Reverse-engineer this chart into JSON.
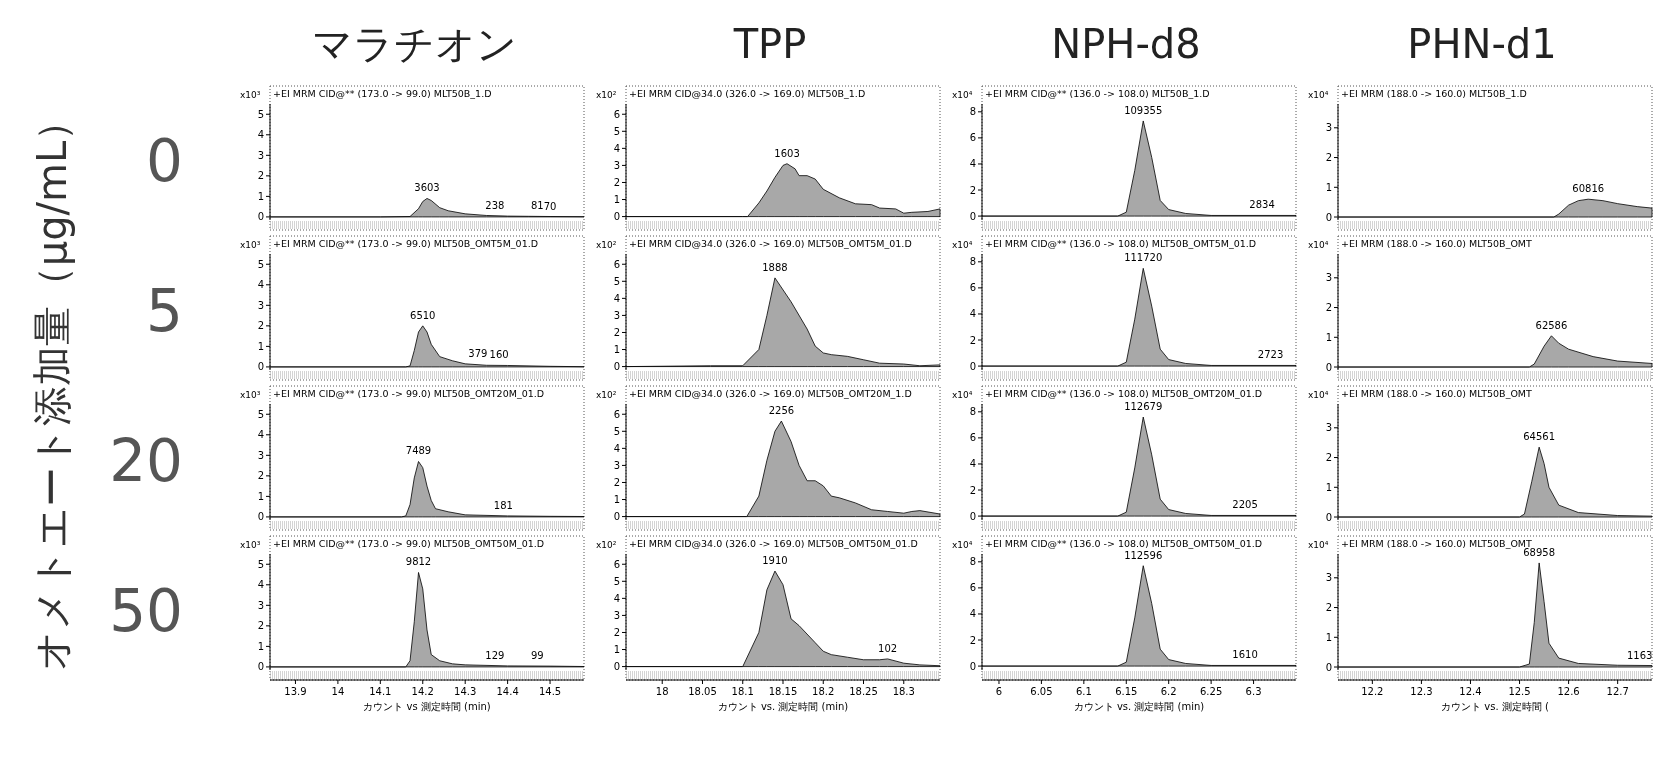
{
  "chart_data": [
    {
      "type": "area",
      "title": "マラチオン",
      "subtitle": "+EI MRM CID@** (173.0 -> 99.0) MLT50B_1.D",
      "ylabel": "x10³",
      "tick_labels": "y",
      "color": "#a8a8a8",
      "xlim": [
        13.84,
        14.58
      ],
      "ylim": [
        -0.15,
        5.5
      ],
      "yticks": [
        0,
        1,
        2,
        3,
        4,
        5
      ],
      "x": [
        13.84,
        14.1,
        14.17,
        14.19,
        14.2,
        14.21,
        14.22,
        14.24,
        14.26,
        14.3,
        14.35,
        14.4,
        14.45,
        14.5,
        14.58
      ],
      "values": [
        0,
        0,
        0.02,
        0.4,
        0.75,
        0.9,
        0.8,
        0.45,
        0.3,
        0.15,
        0.07,
        0.04,
        0.03,
        0.02,
        0.01
      ],
      "annotations": [
        "オメトエート添加量（μg/mL）",
        "0",
        {
          "text": "3603",
          "x": 14.21,
          "y": 0.9
        },
        {
          "text": "238",
          "x": 14.37,
          "y": 0.05
        },
        {
          "text": "81",
          "x": 14.47,
          "y": 0.03
        },
        {
          "text": "70",
          "x": 14.5,
          "y": 0.02
        }
      ]
    },
    {
      "type": "area",
      "title": "TPP",
      "subtitle": "+EI MRM CID@34.0 (326.0 -> 169.0) MLT50B_1.D",
      "ylabel": "x10²",
      "tick_labels": "y",
      "color": "#a8a8a8",
      "xlim": [
        17.955,
        18.345
      ],
      "ylim": [
        -0.2,
        6.6
      ],
      "yticks": [
        0,
        1,
        2,
        3,
        4,
        5,
        6
      ],
      "x": [
        17.955,
        18.1,
        18.106,
        18.12,
        18.13,
        18.14,
        18.15,
        18.155,
        18.165,
        18.17,
        18.18,
        18.19,
        18.2,
        18.22,
        18.24,
        18.26,
        18.27,
        18.29,
        18.3,
        18.31,
        18.33,
        18.345
      ],
      "values": [
        0,
        0,
        0,
        0.8,
        1.5,
        2.3,
        3.0,
        3.1,
        2.8,
        2.4,
        2.4,
        2.2,
        1.6,
        1.1,
        0.75,
        0.7,
        0.5,
        0.45,
        0.2,
        0.25,
        0.3,
        0.45
      ],
      "annotations": [
        {
          "text": "1603",
          "x": 18.155,
          "y": 3.1
        }
      ]
    },
    {
      "type": "area",
      "title": "NPH-d8",
      "subtitle": "+EI MRM CID@** (136.0 -> 108.0) MLT50B_1.D",
      "ylabel": "x10⁴",
      "tick_labels": "y",
      "color": "#a8a8a8",
      "xlim": [
        5.98,
        6.35
      ],
      "ylim": [
        -0.3,
        8.6
      ],
      "yticks": [
        0,
        2,
        4,
        6,
        8
      ],
      "x": [
        5.98,
        6.14,
        6.15,
        6.16,
        6.17,
        6.18,
        6.19,
        6.2,
        6.22,
        6.25,
        6.35
      ],
      "values": [
        0,
        0,
        0.3,
        3.5,
        7.3,
        4.5,
        1.2,
        0.5,
        0.2,
        0.05,
        0.05
      ],
      "annotations": [
        {
          "text": "109355",
          "x": 6.17,
          "y": 7.3
        },
        {
          "text": "2834",
          "x": 6.31,
          "y": 0.05
        }
      ]
    },
    {
      "type": "area",
      "title": "PHN-d1",
      "subtitle": "+EI MRM (188.0 -> 160.0) MLT50B_1.D",
      "ylabel": "x10⁴",
      "tick_labels": "y",
      "color": "#a8a8a8",
      "xlim": [
        12.13,
        12.77
      ],
      "ylim": [
        -0.1,
        3.8
      ],
      "yticks": [
        0,
        1,
        2,
        3
      ],
      "x": [
        12.13,
        12.57,
        12.58,
        12.6,
        12.62,
        12.64,
        12.67,
        12.7,
        12.74,
        12.77
      ],
      "values": [
        0,
        0,
        0.1,
        0.4,
        0.55,
        0.6,
        0.55,
        0.45,
        0.35,
        0.3
      ],
      "annotations": [
        {
          "text": "60816",
          "x": 12.64,
          "y": 0.6
        }
      ]
    },
    {
      "type": "area",
      "subtitle": "+EI MRM CID@** (173.0 -> 99.0) MLT50B_OMT5M_01.D",
      "ylabel": "x10³",
      "tick_labels": "y",
      "color": "#a8a8a8",
      "xlim": [
        13.84,
        14.58
      ],
      "ylim": [
        -0.15,
        5.5
      ],
      "yticks": [
        0,
        1,
        2,
        3,
        4,
        5
      ],
      "x": [
        13.84,
        14.16,
        14.17,
        14.18,
        14.19,
        14.2,
        14.21,
        14.22,
        14.24,
        14.27,
        14.3,
        14.35,
        14.4,
        14.5,
        14.58
      ],
      "values": [
        0,
        0,
        0.05,
        0.8,
        1.7,
        2.0,
        1.7,
        1.1,
        0.5,
        0.3,
        0.15,
        0.08,
        0.07,
        0.03,
        0.01
      ],
      "annotations": [
        "5",
        {
          "text": "6510",
          "x": 14.2,
          "y": 2.0
        },
        {
          "text": "379",
          "x": 14.33,
          "y": 0.12
        },
        {
          "text": "160",
          "x": 14.38,
          "y": 0.07
        }
      ]
    },
    {
      "type": "area",
      "subtitle": "+EI MRM CID@34.0 (326.0 -> 169.0) MLT50B_OMT5M_01.D",
      "ylabel": "x10²",
      "tick_labels": "y",
      "color": "#a8a8a8",
      "xlim": [
        17.955,
        18.345
      ],
      "ylim": [
        -0.2,
        6.6
      ],
      "yticks": [
        0,
        1,
        2,
        3,
        4,
        5,
        6
      ],
      "x": [
        17.955,
        18.06,
        18.1,
        18.12,
        18.13,
        18.14,
        18.16,
        18.18,
        18.19,
        18.2,
        18.21,
        18.23,
        18.25,
        18.27,
        18.3,
        18.32,
        18.345
      ],
      "values": [
        0,
        0.05,
        0.05,
        1.0,
        3.0,
        5.2,
        3.8,
        2.2,
        1.2,
        0.8,
        0.7,
        0.6,
        0.4,
        0.2,
        0.15,
        0.05,
        0.1
      ],
      "annotations": [
        {
          "text": "1888",
          "x": 18.14,
          "y": 5.2
        }
      ]
    },
    {
      "type": "area",
      "subtitle": "+EI MRM CID@** (136.0 -> 108.0) MLT50B_OMT5M_01.D",
      "ylabel": "x10⁴",
      "tick_labels": "y",
      "color": "#a8a8a8",
      "xlim": [
        5.98,
        6.35
      ],
      "ylim": [
        -0.3,
        8.6
      ],
      "yticks": [
        0,
        2,
        4,
        6,
        8
      ],
      "x": [
        5.98,
        6.14,
        6.15,
        6.16,
        6.17,
        6.18,
        6.19,
        6.2,
        6.22,
        6.25,
        6.35
      ],
      "values": [
        0,
        0,
        0.3,
        3.6,
        7.5,
        4.6,
        1.3,
        0.5,
        0.2,
        0.05,
        0.05
      ],
      "annotations": [
        {
          "text": "111720",
          "x": 6.17,
          "y": 7.5
        },
        {
          "text": "2723",
          "x": 6.32,
          "y": 0.05
        }
      ]
    },
    {
      "type": "area",
      "subtitle": "+EI MRM (188.0 -> 160.0) MLT50B_OMT",
      "ylabel": "x10⁴",
      "color": "#a8a8a8",
      "xlim": [
        12.13,
        12.77
      ],
      "ylim": [
        -0.1,
        3.8
      ],
      "yticks": [
        0,
        1,
        2,
        3
      ],
      "tick_labels": "y",
      "x": [
        12.13,
        12.52,
        12.53,
        12.55,
        12.565,
        12.58,
        12.6,
        12.65,
        12.7,
        12.77
      ],
      "values": [
        0,
        0,
        0.1,
        0.7,
        1.05,
        0.8,
        0.6,
        0.35,
        0.2,
        0.12
      ],
      "annotations": [
        {
          "text": "62586",
          "x": 12.565,
          "y": 1.05
        }
      ]
    },
    {
      "type": "area",
      "subtitle": "+EI MRM CID@** (173.0 -> 99.0) MLT50B_OMT20M_01.D",
      "ylabel": "x10³",
      "tick_labels": "y",
      "color": "#a8a8a8",
      "xlim": [
        13.84,
        14.58
      ],
      "ylim": [
        -0.15,
        5.5
      ],
      "yticks": [
        0,
        1,
        2,
        3,
        4,
        5
      ],
      "x": [
        13.84,
        14.15,
        14.16,
        14.17,
        14.18,
        14.19,
        14.2,
        14.21,
        14.22,
        14.23,
        14.26,
        14.3,
        14.4,
        14.5,
        14.58
      ],
      "values": [
        0,
        0,
        0.05,
        0.6,
        1.9,
        2.7,
        2.4,
        1.5,
        0.8,
        0.4,
        0.25,
        0.1,
        0.05,
        0.03,
        0.02
      ],
      "annotations": [
        "20",
        {
          "text": "7489",
          "x": 14.19,
          "y": 2.7
        },
        {
          "text": "181",
          "x": 14.39,
          "y": 0.05
        }
      ]
    },
    {
      "type": "area",
      "subtitle": "+EI MRM CID@34.0 (326.0 -> 169.0) MLT50B_OMT20M_1.D",
      "ylabel": "x10²",
      "tick_labels": "y",
      "color": "#a8a8a8",
      "xlim": [
        17.955,
        18.345
      ],
      "ylim": [
        -0.2,
        6.6
      ],
      "yticks": [
        0,
        1,
        2,
        3,
        4,
        5,
        6
      ],
      "x": [
        17.955,
        18.105,
        18.12,
        18.13,
        18.14,
        18.148,
        18.16,
        18.17,
        18.18,
        18.19,
        18.2,
        18.21,
        18.22,
        18.24,
        18.26,
        18.28,
        18.3,
        18.31,
        18.32,
        18.345
      ],
      "values": [
        0,
        0,
        1.2,
        3.3,
        5.0,
        5.6,
        4.4,
        3.0,
        2.1,
        2.1,
        1.8,
        1.2,
        1.1,
        0.8,
        0.4,
        0.3,
        0.2,
        0.3,
        0.35,
        0.15
      ],
      "annotations": [
        {
          "text": "2256",
          "x": 18.148,
          "y": 5.6
        }
      ]
    },
    {
      "type": "area",
      "subtitle": "+EI MRM CID@** (136.0 -> 108.0) MLT50B_OMT20M_01.D",
      "ylabel": "x10⁴",
      "tick_labels": "y",
      "color": "#a8a8a8",
      "xlim": [
        5.98,
        6.35
      ],
      "ylim": [
        -0.3,
        8.6
      ],
      "yticks": [
        0,
        2,
        4,
        6,
        8
      ],
      "x": [
        5.98,
        6.14,
        6.15,
        6.16,
        6.17,
        6.18,
        6.19,
        6.2,
        6.22,
        6.25,
        6.35
      ],
      "values": [
        0,
        0,
        0.3,
        3.7,
        7.6,
        4.7,
        1.3,
        0.5,
        0.2,
        0.05,
        0.05
      ],
      "annotations": [
        {
          "text": "112679",
          "x": 6.17,
          "y": 7.6
        },
        {
          "text": "2205",
          "x": 6.29,
          "y": 0.05
        }
      ]
    },
    {
      "type": "area",
      "subtitle": "+EI MRM (188.0 -> 160.0) MLT50B_OMT",
      "ylabel": "x10⁴",
      "color": "#a8a8a8",
      "xlim": [
        12.13,
        12.77
      ],
      "ylim": [
        -0.1,
        3.8
      ],
      "yticks": [
        0,
        1,
        2,
        3
      ],
      "tick_labels": "y",
      "x": [
        12.13,
        12.5,
        12.51,
        12.525,
        12.54,
        12.55,
        12.56,
        12.58,
        12.62,
        12.7,
        12.77
      ],
      "values": [
        0,
        0,
        0.1,
        1.2,
        2.35,
        1.8,
        1.0,
        0.4,
        0.15,
        0.05,
        0.03
      ],
      "annotations": [
        {
          "text": "64561",
          "x": 12.54,
          "y": 2.35
        }
      ]
    },
    {
      "type": "area",
      "subtitle": "+EI MRM CID@** (173.0 -> 99.0) MLT50B_OMT50M_01.D",
      "xlabel": "カウント vs 測定時間 (min)",
      "ylabel": "x10³",
      "color": "#a8a8a8",
      "xlim": [
        13.84,
        14.58
      ],
      "xticks": [
        13.9,
        14,
        14.1,
        14.2,
        14.3,
        14.4,
        14.5
      ],
      "ylim": [
        -0.15,
        5.5
      ],
      "yticks": [
        0,
        1,
        2,
        3,
        4,
        5
      ],
      "x": [
        13.84,
        14.16,
        14.17,
        14.18,
        14.19,
        14.2,
        14.21,
        14.22,
        14.24,
        14.27,
        14.3,
        14.4,
        14.5,
        14.58
      ],
      "values": [
        0,
        0,
        0.3,
        2.2,
        4.6,
        3.8,
        1.8,
        0.6,
        0.3,
        0.15,
        0.1,
        0.05,
        0.04,
        0.02
      ],
      "annotations": [
        "50",
        {
          "text": "9812",
          "x": 14.19,
          "y": 4.6
        },
        {
          "text": "129",
          "x": 14.37,
          "y": 0.05
        },
        {
          "text": "99",
          "x": 14.47,
          "y": 0.04
        }
      ]
    },
    {
      "type": "area",
      "subtitle": "+EI MRM CID@34.0 (326.0 -> 169.0) MLT50B_OMT50M_01.D",
      "xlabel": "カウント vs. 測定時間 (min)",
      "ylabel": "x10²",
      "color": "#a8a8a8",
      "xlim": [
        17.955,
        18.345
      ],
      "xticks": [
        18,
        18.05,
        18.1,
        18.15,
        18.2,
        18.25,
        18.3
      ],
      "ylim": [
        -0.2,
        6.6
      ],
      "yticks": [
        0,
        1,
        2,
        3,
        4,
        5,
        6
      ],
      "x": [
        17.955,
        18.1,
        18.12,
        18.13,
        18.14,
        18.15,
        18.16,
        18.17,
        18.19,
        18.2,
        18.21,
        18.23,
        18.25,
        18.27,
        18.28,
        18.3,
        18.32,
        18.345
      ],
      "values": [
        0,
        0,
        2.0,
        4.5,
        5.6,
        4.8,
        2.8,
        2.4,
        1.4,
        0.9,
        0.7,
        0.55,
        0.4,
        0.4,
        0.45,
        0.2,
        0.1,
        0.05
      ],
      "annotations": [
        {
          "text": "1910",
          "x": 18.14,
          "y": 5.6
        },
        {
          "text": "102",
          "x": 18.28,
          "y": 0.45
        }
      ]
    },
    {
      "type": "area",
      "subtitle": "+EI MRM CID@** (136.0 -> 108.0) MLT50B_OMT50M_01.D",
      "xlabel": "カウント vs. 測定時間 (min)",
      "ylabel": "x10⁴",
      "color": "#a8a8a8",
      "xlim": [
        5.98,
        6.35
      ],
      "xticks": [
        6,
        6.05,
        6.1,
        6.15,
        6.2,
        6.25,
        6.3
      ],
      "ylim": [
        -0.3,
        8.6
      ],
      "yticks": [
        0,
        2,
        4,
        6,
        8
      ],
      "x": [
        5.98,
        6.14,
        6.15,
        6.16,
        6.17,
        6.18,
        6.19,
        6.2,
        6.22,
        6.25,
        6.35
      ],
      "values": [
        0,
        0,
        0.3,
        3.7,
        7.7,
        4.8,
        1.3,
        0.5,
        0.2,
        0.05,
        0.05
      ],
      "annotations": [
        {
          "text": "112596",
          "x": 6.17,
          "y": 7.7
        },
        {
          "text": "1610",
          "x": 6.29,
          "y": 0.05
        }
      ]
    },
    {
      "type": "area",
      "subtitle": "+EI MRM (188.0 -> 160.0) MLT50B_OMT",
      "xlabel": "カウント vs. 測定時間 (",
      "ylabel": "x10⁴",
      "color": "#a8a8a8",
      "xlim": [
        12.13,
        12.77
      ],
      "xticks": [
        12.2,
        12.3,
        12.4,
        12.5,
        12.6,
        12.7
      ],
      "ylim": [
        -0.1,
        3.8
      ],
      "yticks": [
        0,
        1,
        2,
        3
      ],
      "x": [
        12.13,
        12.5,
        12.52,
        12.53,
        12.54,
        12.55,
        12.56,
        12.58,
        12.62,
        12.7,
        12.77
      ],
      "values": [
        0,
        0,
        0.1,
        1.5,
        3.5,
        2.2,
        0.8,
        0.3,
        0.12,
        0.06,
        0.05
      ],
      "annotations": [
        {
          "text": "68958",
          "x": 12.54,
          "y": 3.5
        },
        {
          "text": "1163",
          "x": 12.745,
          "y": 0.05
        }
      ]
    }
  ]
}
